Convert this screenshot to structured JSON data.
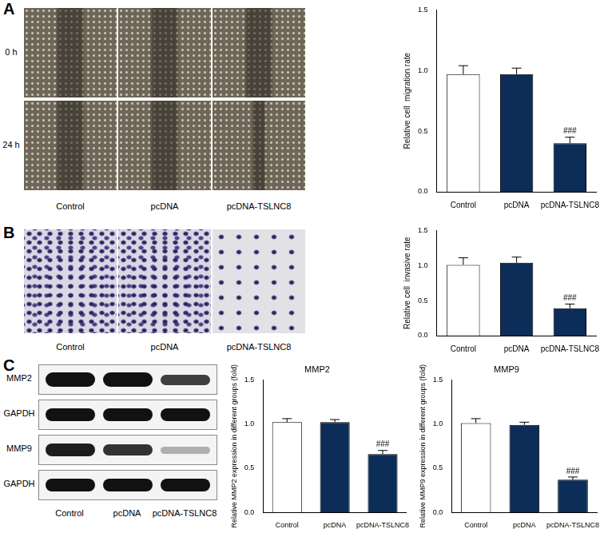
{
  "figure": {
    "panels": [
      {
        "letter": "A",
        "row_labels": [
          "0 h",
          "24 h"
        ],
        "column_labels": [
          "Control",
          "pcDNA",
          "pcDNA-TSLNC8"
        ]
      },
      {
        "letter": "B",
        "column_labels": [
          "Control",
          "pcDNA",
          "pcDNA-TSLNC8"
        ]
      },
      {
        "letter": "C",
        "blot_labels": [
          "MMP2",
          "GAPDH",
          "MMP9",
          "GAPDH"
        ],
        "column_labels": [
          "Control",
          "pcDNA",
          "pcDNA-TSLNC8"
        ]
      }
    ]
  },
  "chart_data": [
    {
      "type": "bar",
      "y_label": "Relative cell  migration rate",
      "categories": [
        "Control",
        "pcDNA",
        "pcDNA-TSLNC8"
      ],
      "values": [
        0.97,
        0.97,
        0.4
      ],
      "errors": [
        0.07,
        0.05,
        0.05
      ],
      "colors": [
        "#ffffff",
        "#0c2d57",
        "#0c2d57"
      ],
      "ylim": [
        0,
        1.5
      ],
      "yticks": [
        {
          "value": 0,
          "label": "0.0"
        },
        0.5,
        {
          "value": 1,
          "label": "1.0"
        },
        1.5
      ],
      "grid": false,
      "annotations": [
        {
          "category": "pcDNA-TSLNC8",
          "text": "###"
        }
      ]
    },
    {
      "type": "bar",
      "y_label": "Relative cell  invasive rate",
      "categories": [
        "Control",
        "pcDNA",
        "pcDNA-TSLNC8"
      ],
      "values": [
        1.01,
        1.04,
        0.39
      ],
      "errors": [
        0.1,
        0.08,
        0.06
      ],
      "colors": [
        "#ffffff",
        "#0c2d57",
        "#0c2d57"
      ],
      "ylim": [
        0,
        1.5
      ],
      "yticks": [
        {
          "value": 0,
          "label": "0.0"
        },
        0.5,
        {
          "value": 1,
          "label": "1.0"
        },
        1.5
      ],
      "grid": false,
      "annotations": [
        {
          "category": "pcDNA-TSLNC8",
          "text": "###"
        }
      ]
    },
    {
      "type": "bar",
      "title": "MMP2",
      "y_label": "Relative MMP2 expression in different groups (fold)",
      "categories": [
        "Control",
        "pcDNA",
        "pcDNA-TSLNC8"
      ],
      "values": [
        1.02,
        1.02,
        0.66
      ],
      "errors": [
        0.04,
        0.03,
        0.04
      ],
      "colors": [
        "#ffffff",
        "#0c2d57",
        "#0c2d57"
      ],
      "ylim": [
        0,
        1.5
      ],
      "yticks": [
        {
          "value": 0,
          "label": "0.0"
        },
        0.5,
        {
          "value": 1,
          "label": "1.0"
        },
        1.5
      ],
      "grid": false,
      "annotations": [
        {
          "category": "pcDNA-TSLNC8",
          "text": "###"
        }
      ]
    },
    {
      "type": "bar",
      "title": "MMP9",
      "y_label": "Relative MMP9 expression in different groups (fold)",
      "categories": [
        "Control",
        "pcDNA",
        "pcDNA-TSLNC8"
      ],
      "values": [
        1.01,
        0.99,
        0.37
      ],
      "errors": [
        0.05,
        0.03,
        0.03
      ],
      "colors": [
        "#ffffff",
        "#0c2d57",
        "#0c2d57"
      ],
      "ylim": [
        0,
        1.5
      ],
      "yticks": [
        {
          "value": 0,
          "label": "0.0"
        },
        0.5,
        {
          "value": 1,
          "label": "1.0"
        },
        1.5
      ],
      "grid": false,
      "annotations": [
        {
          "category": "pcDNA-TSLNC8",
          "text": "###"
        }
      ]
    }
  ]
}
